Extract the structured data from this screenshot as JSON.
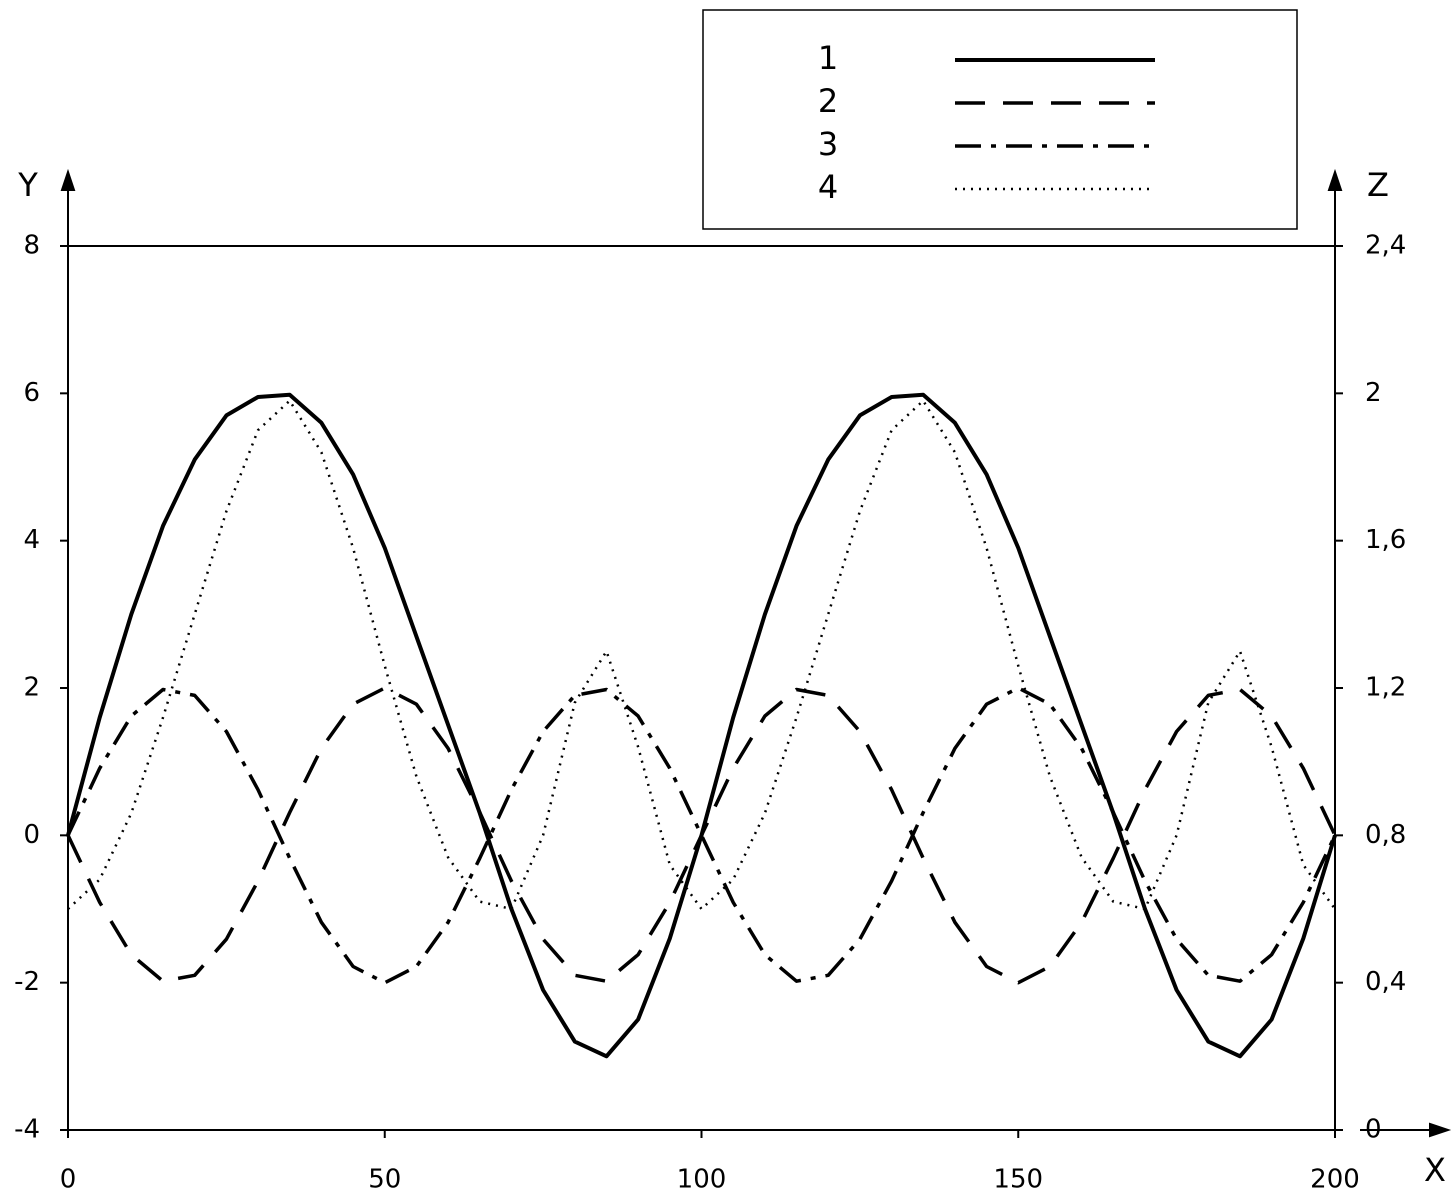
{
  "chart_data": {
    "type": "line",
    "x_label": "X",
    "y_label": "Y",
    "y2_label": "Z",
    "x": [
      0,
      5,
      10,
      15,
      20,
      25,
      30,
      35,
      40,
      45,
      50,
      55,
      60,
      65,
      70,
      75,
      80,
      85,
      90,
      95,
      100,
      105,
      110,
      115,
      120,
      125,
      130,
      135,
      140,
      145,
      150,
      155,
      160,
      165,
      170,
      175,
      180,
      185,
      190,
      195,
      200
    ],
    "xlim": [
      0,
      200
    ],
    "xticks": [
      0,
      50,
      100,
      150,
      200
    ],
    "ylim": [
      -4,
      8
    ],
    "yticks": [
      -4,
      -2,
      0,
      2,
      4,
      6,
      8
    ],
    "y2lim": [
      0,
      2.4
    ],
    "y2ticks": [
      0,
      {
        "value": 0.4,
        "label": "0,4"
      },
      {
        "value": 0.8,
        "label": "0,8"
      },
      {
        "value": 1.2,
        "label": "1,2"
      },
      {
        "value": 1.6,
        "label": "1,6"
      },
      2,
      {
        "value": 2.4,
        "label": "2,4"
      }
    ],
    "legend": "top-right",
    "series": [
      {
        "name": "1",
        "color": "#000000",
        "style": "solid",
        "values": [
          0,
          1.6,
          3.0,
          4.2,
          5.1,
          5.7,
          5.95,
          5.98,
          5.6,
          4.9,
          3.9,
          2.7,
          1.5,
          0.3,
          -1.0,
          -2.1,
          -2.8,
          -3.0,
          -2.5,
          -1.4,
          0,
          1.6,
          3.0,
          4.2,
          5.1,
          5.7,
          5.95,
          5.98,
          5.6,
          4.9,
          3.9,
          2.7,
          1.5,
          0.3,
          -1.0,
          -2.1,
          -2.8,
          -3.0,
          -2.5,
          -1.4,
          0
        ]
      },
      {
        "name": "2",
        "color": "#000000",
        "style": "dashed",
        "values": [
          0,
          -0.91,
          -1.62,
          -1.98,
          -1.9,
          -1.41,
          -0.62,
          0.31,
          1.18,
          1.78,
          2,
          1.78,
          1.18,
          0.31,
          -0.62,
          -1.41,
          -1.9,
          -1.98,
          -1.62,
          -0.91,
          0,
          0.91,
          1.62,
          1.98,
          1.9,
          1.41,
          0.62,
          -0.31,
          -1.18,
          -1.78,
          -2,
          -1.78,
          -1.18,
          -0.31,
          0.62,
          1.41,
          1.9,
          1.98,
          1.62,
          0.91,
          0
        ]
      },
      {
        "name": "3",
        "color": "#000000",
        "style": "dashdot",
        "values": [
          0,
          0.91,
          1.62,
          1.98,
          1.9,
          1.41,
          0.62,
          -0.31,
          -1.18,
          -1.78,
          -2,
          -1.78,
          -1.18,
          -0.31,
          0.62,
          1.41,
          1.9,
          1.98,
          1.62,
          0.91,
          0,
          -0.91,
          -1.62,
          -1.98,
          -1.9,
          -1.41,
          -0.62,
          0.31,
          1.18,
          1.78,
          2,
          1.78,
          1.18,
          0.31,
          -0.62,
          -1.41,
          -1.9,
          -1.98,
          -1.62,
          -0.91,
          0
        ]
      },
      {
        "name": "4",
        "color": "#000000",
        "style": "dotted",
        "values": [
          -1,
          -0.6,
          0.3,
          1.6,
          3.0,
          4.4,
          5.5,
          5.9,
          5.2,
          3.9,
          2.3,
          0.8,
          -0.3,
          -0.9,
          -1.0,
          0.0,
          1.8,
          2.5,
          1.2,
          -0.4,
          -1.0,
          -0.6,
          0.3,
          1.6,
          3.0,
          4.4,
          5.5,
          5.9,
          5.2,
          3.9,
          2.3,
          0.8,
          -0.3,
          -0.9,
          -1.0,
          0.0,
          1.8,
          2.5,
          1.2,
          -0.4,
          -1.0
        ]
      }
    ]
  }
}
